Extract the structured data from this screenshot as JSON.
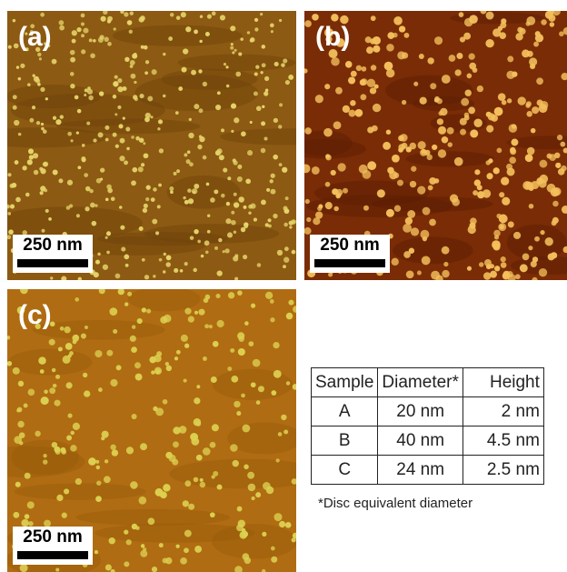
{
  "panels": [
    {
      "label": "(a)",
      "scale_bar": "250 nm"
    },
    {
      "label": "(b)",
      "scale_bar": "250 nm"
    },
    {
      "label": "(c)",
      "scale_bar": "250 nm"
    }
  ],
  "table": {
    "header": [
      "Sample",
      "Diameter*",
      "Height"
    ],
    "rows": [
      [
        "A",
        "20 nm",
        "2 nm"
      ],
      [
        "B",
        "40 nm",
        "4.5 nm"
      ],
      [
        "C",
        "24 nm",
        "2.5 nm"
      ]
    ]
  },
  "footnote": "*Disc equivalent diameter"
}
